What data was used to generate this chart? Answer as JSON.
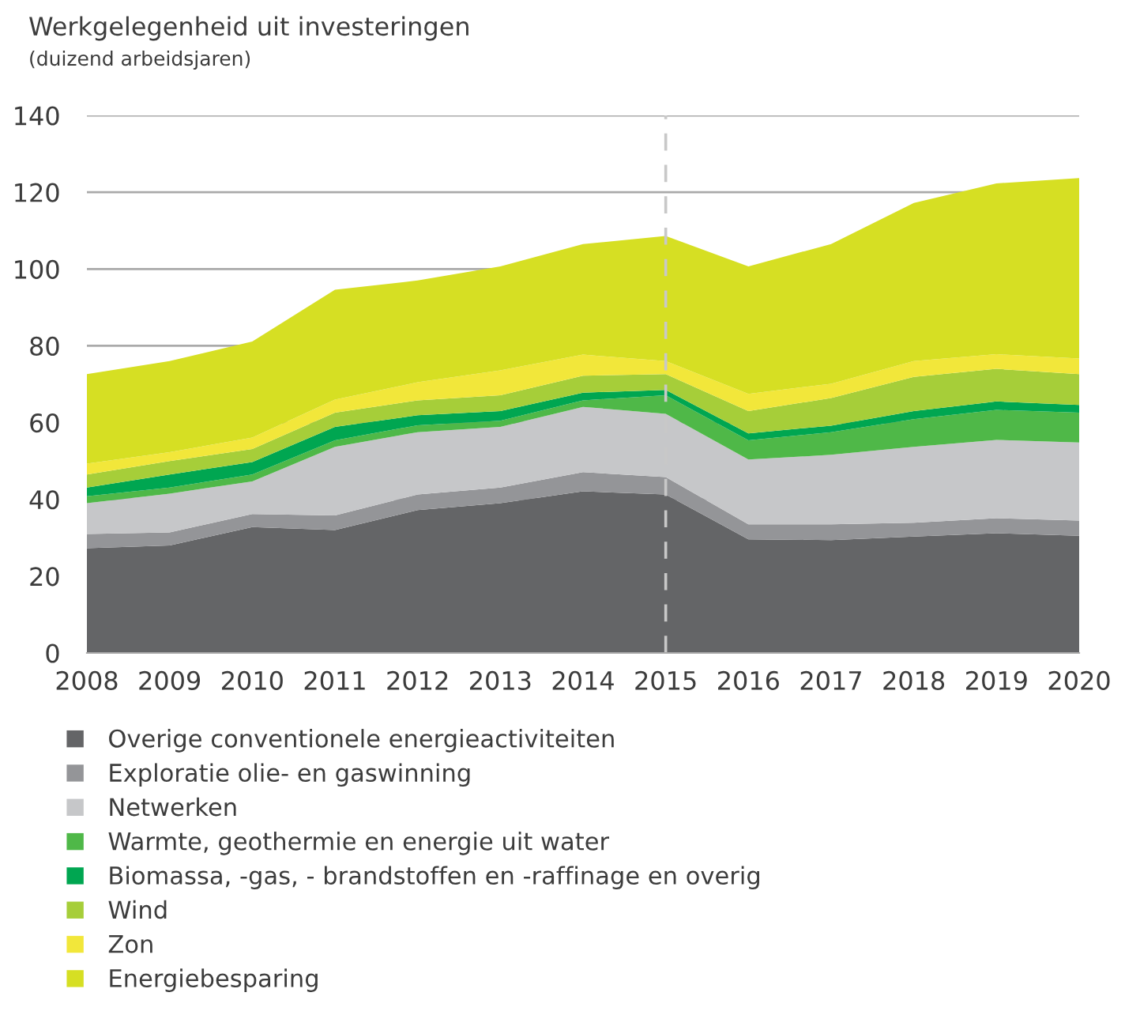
{
  "chart_data": {
    "type": "area",
    "stacked": true,
    "title": "Werkgelegenheid uit investeringen",
    "subtitle": "(duizend arbeidsjaren)",
    "x": [
      2008,
      2009,
      2010,
      2011,
      2012,
      2013,
      2014,
      2015,
      2016,
      2017,
      2018,
      2019,
      2020
    ],
    "series": [
      {
        "name": "Overige conventionele energieactiviteiten",
        "color": "#646567",
        "values": [
          27.3,
          28.0,
          32.8,
          32.0,
          37.2,
          39.0,
          42.1,
          41.3,
          29.6,
          29.4,
          30.3,
          31.2,
          30.5
        ]
      },
      {
        "name": "Exploratie olie- en gaswinning",
        "color": "#949598",
        "values": [
          3.7,
          3.4,
          3.4,
          3.8,
          4.1,
          4.1,
          5.0,
          4.5,
          3.9,
          4.1,
          3.6,
          3.9,
          4.0
        ]
      },
      {
        "name": "Netwerken",
        "color": "#c6c7c9",
        "values": [
          8.0,
          10.1,
          8.5,
          17.9,
          16.2,
          15.8,
          17.0,
          16.5,
          16.9,
          18.1,
          19.8,
          20.4,
          20.3
        ]
      },
      {
        "name": "Warmte, geothermie en energie uit water",
        "color": "#4fb848",
        "values": [
          1.8,
          1.6,
          1.8,
          1.7,
          1.8,
          1.6,
          1.7,
          4.8,
          5.0,
          5.9,
          7.2,
          7.8,
          7.8
        ]
      },
      {
        "name": "Biomassa, -gas, - brandstoffen en -raffinage en overig",
        "color": "#00a651",
        "values": [
          2.3,
          3.4,
          3.2,
          3.5,
          2.6,
          2.5,
          2.0,
          1.4,
          1.8,
          1.7,
          2.1,
          2.2,
          2.0
        ]
      },
      {
        "name": "Wind",
        "color": "#a6ce39",
        "values": [
          3.4,
          3.5,
          3.4,
          3.7,
          3.9,
          4.1,
          4.4,
          4.1,
          5.8,
          7.2,
          8.9,
          8.5,
          8.0
        ]
      },
      {
        "name": "Zon",
        "color": "#f2e73a",
        "values": [
          2.8,
          2.3,
          3.0,
          3.4,
          4.7,
          6.5,
          5.5,
          3.4,
          4.5,
          3.7,
          4.1,
          3.8,
          4.1
        ]
      },
      {
        "name": "Energiebesparing",
        "color": "#d6df23",
        "values": [
          23.3,
          23.7,
          25.0,
          28.6,
          26.5,
          27.1,
          28.8,
          32.6,
          33.2,
          36.4,
          41.2,
          44.5,
          47.0
        ]
      }
    ],
    "xlim": [
      2008,
      2020
    ],
    "xticks": [
      2008,
      2009,
      2010,
      2011,
      2012,
      2013,
      2014,
      2015,
      2016,
      2017,
      2018,
      2019,
      2020
    ],
    "ylim": [
      0,
      140
    ],
    "yticks": [
      0,
      20,
      40,
      60,
      80,
      100,
      120,
      140
    ],
    "ref_lines": [
      {
        "axis": "x",
        "value": 2015,
        "color": "#c8c8c8",
        "line_style": "dashed"
      }
    ],
    "grid": "y",
    "legend": "bottom"
  }
}
